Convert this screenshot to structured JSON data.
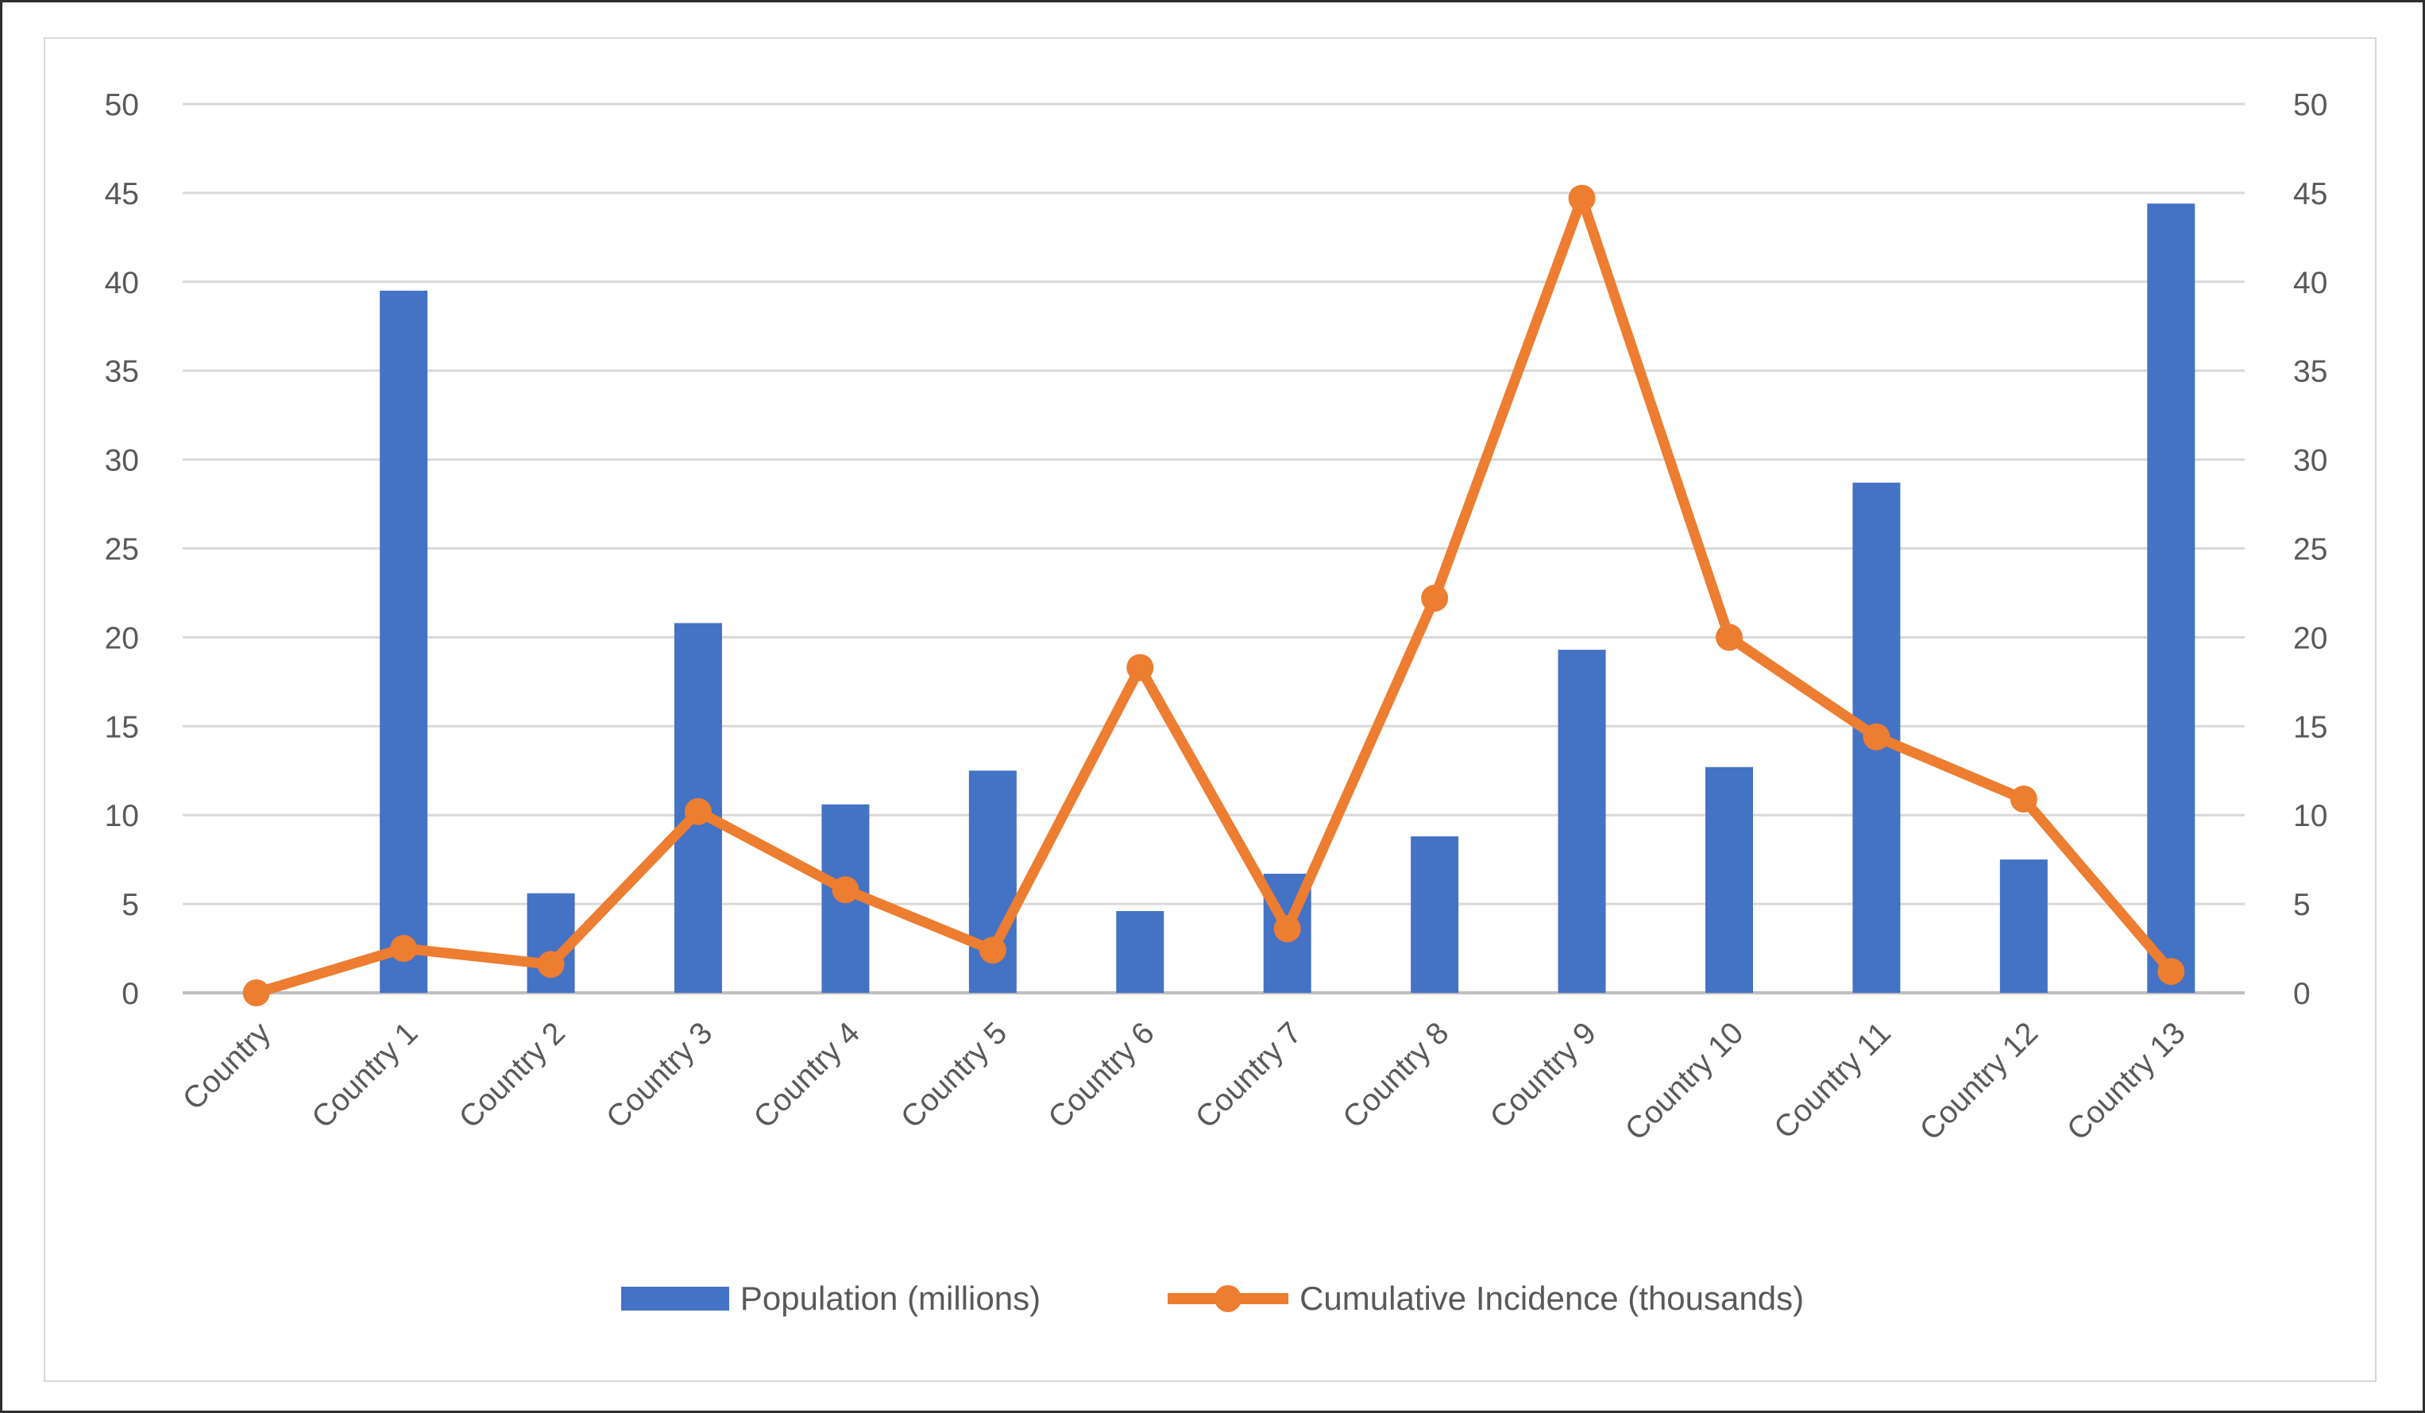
{
  "chart_data": {
    "type": "combo",
    "title": "",
    "categories": [
      "Country",
      "Country 1",
      "Country 2",
      "Country 3",
      "Country 4",
      "Country 5",
      "Country 6",
      "Country 7",
      "Country 8",
      "Country 9",
      "Country 10",
      "Country 11",
      "Country 12",
      "Country 13"
    ],
    "series": [
      {
        "name": "Population (millions)",
        "type": "bar",
        "axis": "left",
        "color": "#4472C4",
        "values": [
          0,
          39.5,
          5.6,
          20.8,
          10.6,
          12.5,
          4.6,
          6.7,
          8.8,
          19.3,
          12.7,
          28.7,
          7.5,
          44.4
        ]
      },
      {
        "name": "Cumulative Incidence (thousands)",
        "type": "line",
        "axis": "right",
        "color": "#ED7D31",
        "values": [
          0,
          2.5,
          1.6,
          10.2,
          5.8,
          2.4,
          18.3,
          3.6,
          22.2,
          44.7,
          20.0,
          14.4,
          10.9,
          1.2
        ]
      }
    ],
    "left_axis": {
      "min": 0,
      "max": 50,
      "step": 5,
      "ticks": [
        0,
        5,
        10,
        15,
        20,
        25,
        30,
        35,
        40,
        45,
        50
      ]
    },
    "right_axis": {
      "min": 0,
      "max": 50,
      "step": 5,
      "ticks": [
        0,
        5,
        10,
        15,
        20,
        25,
        30,
        35,
        40,
        45,
        50
      ]
    },
    "grid": true,
    "legend_position": "bottom",
    "colors": {
      "bar": "#4472C4",
      "line": "#ED7D31",
      "gridline": "#D9D9D9",
      "zero_line": "#BFBFBF",
      "axis_text": "#595959",
      "chart_border": "#D8D8D8",
      "plot_background": "#FFFFFF"
    }
  }
}
